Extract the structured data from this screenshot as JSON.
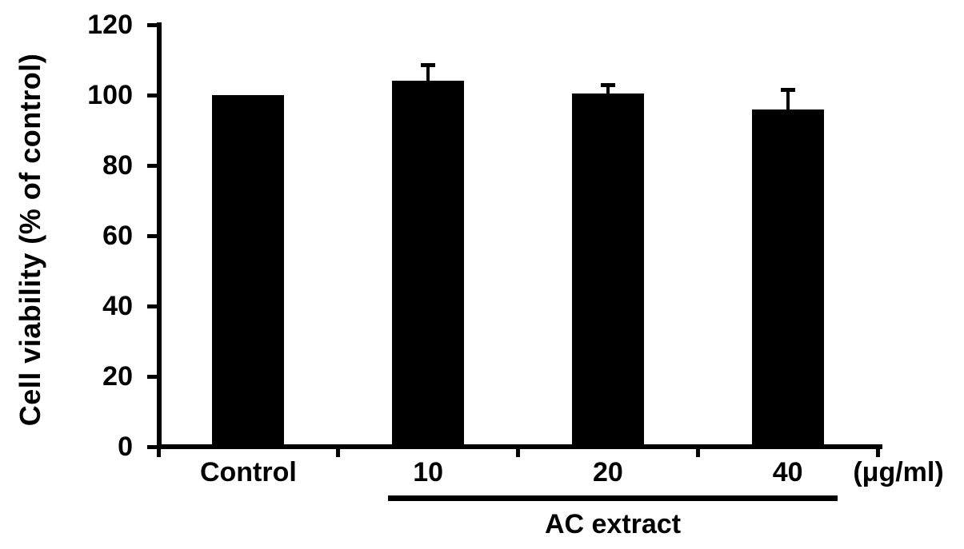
{
  "figure": {
    "background_color": "#ffffff",
    "ink_color": "#000000"
  },
  "chart_data": {
    "type": "bar",
    "title": "",
    "ylabel": "Cell viability (% of control)",
    "xlabel": "",
    "unit_label": "(μg/ml)",
    "group_label": "AC extract",
    "grouped_categories": [
      "10",
      "20",
      "40"
    ],
    "categories": [
      "Control",
      "10",
      "20",
      "40"
    ],
    "values": [
      100,
      104,
      100.5,
      96
    ],
    "errors_upper": [
      0,
      5,
      3,
      6
    ],
    "ylim": [
      0,
      120
    ],
    "yticks": [
      0,
      20,
      40,
      60,
      80,
      100,
      120
    ],
    "bar_color": "#000000",
    "grid": false,
    "legend": null,
    "error_bar_style": "upper-only-with-cap"
  }
}
